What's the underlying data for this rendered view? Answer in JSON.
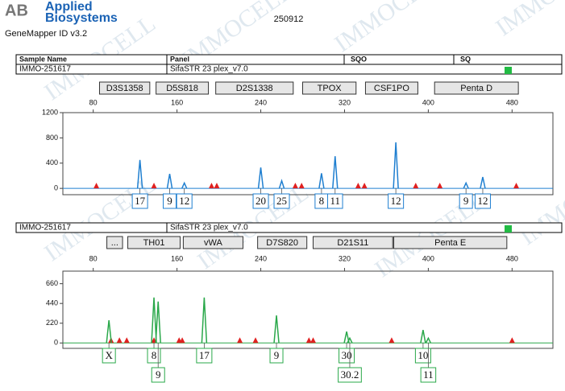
{
  "header": {
    "logo_mark": "AB",
    "logo_top": "Applied",
    "logo_bottom": "Biosystems",
    "software": "GeneMapper ID v3.2",
    "run": "250912",
    "watermark": "IMMOCELL"
  },
  "table": {
    "columns": [
      "Sample Name",
      "Panel",
      "SQO",
      "SQ"
    ]
  },
  "chart_data": [
    {
      "type": "spike",
      "sample": "IMMO-251617",
      "panel": "SifaSTR 23 plex_v7.0",
      "color": "#1f7fd0",
      "size_standard_color": "#e02020",
      "quality_color": "#22bb44",
      "xlim": [
        51,
        519
      ],
      "xticks": [
        80,
        160,
        240,
        320,
        400,
        480
      ],
      "ylim": [
        -100,
        1200
      ],
      "yticks": [
        0,
        400,
        800,
        1200
      ],
      "loci": [
        {
          "name": "D3S1358",
          "start": 86,
          "end": 134
        },
        {
          "name": "D5S818",
          "start": 140,
          "end": 190
        },
        {
          "name": "D2S1338",
          "start": 197,
          "end": 271
        },
        {
          "name": "TPOX",
          "start": 280,
          "end": 331
        },
        {
          "name": "CSF1PO",
          "start": 340,
          "end": 390
        },
        {
          "name": "Penta D",
          "start": 406,
          "end": 486
        }
      ],
      "x": [
        124.6,
        153,
        167,
        240,
        260,
        298,
        311,
        369,
        436,
        452
      ],
      "values": [
        450,
        230,
        85,
        330,
        120,
        240,
        510,
        730,
        85,
        180
      ],
      "allele_labels": [
        "17",
        "9",
        "12",
        "20",
        "25",
        "8",
        "11",
        "12",
        "9",
        "12"
      ],
      "size_standard": [
        83,
        138,
        193,
        198,
        273,
        279,
        333,
        339,
        388,
        411,
        484
      ]
    },
    {
      "type": "spike",
      "sample": "IMMO-251617",
      "panel": "SifaSTR 23 plex_v7.0",
      "color": "#2aa84a",
      "size_standard_color": "#e02020",
      "quality_color": "#22bb44",
      "xlim": [
        51,
        519
      ],
      "xticks": [
        80,
        160,
        240,
        320,
        400,
        480
      ],
      "ylim": [
        -60,
        800
      ],
      "yticks": [
        0,
        220,
        440,
        660
      ],
      "loci": [
        {
          "name": "...",
          "start": 93,
          "end": 108
        },
        {
          "name": "TH01",
          "start": 113,
          "end": 163
        },
        {
          "name": "vWA",
          "start": 166,
          "end": 223
        },
        {
          "name": "D7S820",
          "start": 237,
          "end": 284
        },
        {
          "name": "D21S11",
          "start": 290,
          "end": 366
        },
        {
          "name": "Penta E",
          "start": 367,
          "end": 475
        }
      ],
      "x": [
        95,
        138,
        142,
        186,
        255,
        322,
        325,
        395,
        400
      ],
      "values": [
        253,
        506,
        461,
        506,
        307,
        127,
        54,
        145,
        54
      ],
      "allele_labels": [
        "X",
        "8",
        "9",
        "17",
        "9",
        "30",
        "30.2",
        "10",
        "11"
      ],
      "size_standard": [
        97,
        105,
        112,
        138,
        162,
        165,
        220,
        235,
        286,
        290,
        365,
        480
      ]
    }
  ]
}
